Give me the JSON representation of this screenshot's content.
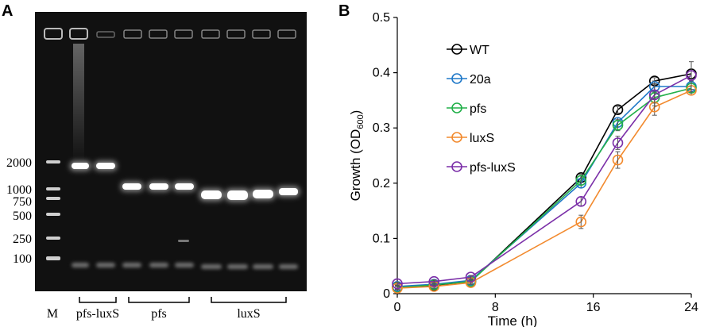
{
  "panel_a": {
    "letter": "A",
    "ladder_marker_label": "M",
    "ladder_sizes": [
      "2000",
      "1000",
      "750",
      "500",
      "250",
      "100"
    ],
    "group_labels": [
      "pfs-luxS",
      "pfs",
      "luxS"
    ]
  },
  "panel_b": {
    "letter": "B"
  },
  "chart_data": {
    "type": "line",
    "title": "",
    "xlabel": "Time (h)",
    "ylabel_main": "Growth (OD",
    "ylabel_sub": "600",
    "ylabel_close": ")",
    "xlim": [
      0,
      24
    ],
    "ylim": [
      0,
      0.5
    ],
    "xticks": [
      0,
      8,
      16,
      24
    ],
    "yticks": [
      0,
      0.1,
      0.2,
      0.3,
      0.4,
      0.5
    ],
    "ytick_labels": [
      "0",
      "0.1",
      "0.2",
      "0.3",
      "0.4",
      "0.5"
    ],
    "xtick_labels": [
      "0",
      "8",
      "16",
      "24"
    ],
    "grid": false,
    "legend_position": "top-left",
    "x": [
      0,
      3,
      6,
      15,
      18,
      21,
      24
    ],
    "series": [
      {
        "name": "WT",
        "color": "#000000",
        "values": [
          0.012,
          0.015,
          0.022,
          0.21,
          0.333,
          0.385,
          0.398
        ],
        "errors": [
          0.003,
          0.003,
          0.003,
          0.006,
          0.006,
          0.006,
          0.008
        ]
      },
      {
        "name": "20a",
        "color": "#1f78c8",
        "values": [
          0.013,
          0.017,
          0.024,
          0.2,
          0.31,
          0.375,
          0.375
        ],
        "errors": [
          0.003,
          0.003,
          0.003,
          0.008,
          0.008,
          0.01,
          0.01
        ]
      },
      {
        "name": "pfs",
        "color": "#22b04a",
        "values": [
          0.011,
          0.016,
          0.022,
          0.205,
          0.305,
          0.355,
          0.372
        ],
        "errors": [
          0.003,
          0.003,
          0.003,
          0.008,
          0.01,
          0.01,
          0.008
        ]
      },
      {
        "name": "luxS",
        "color": "#f28a2e",
        "values": [
          0.01,
          0.013,
          0.02,
          0.13,
          0.242,
          0.338,
          0.368
        ],
        "errors": [
          0.003,
          0.003,
          0.003,
          0.012,
          0.015,
          0.015,
          0.008
        ]
      },
      {
        "name": "pfs-luxS",
        "color": "#7b2fa8",
        "values": [
          0.018,
          0.022,
          0.03,
          0.167,
          0.273,
          0.36,
          0.395
        ],
        "errors": [
          0.003,
          0.003,
          0.003,
          0.008,
          0.012,
          0.02,
          0.025
        ]
      }
    ]
  }
}
